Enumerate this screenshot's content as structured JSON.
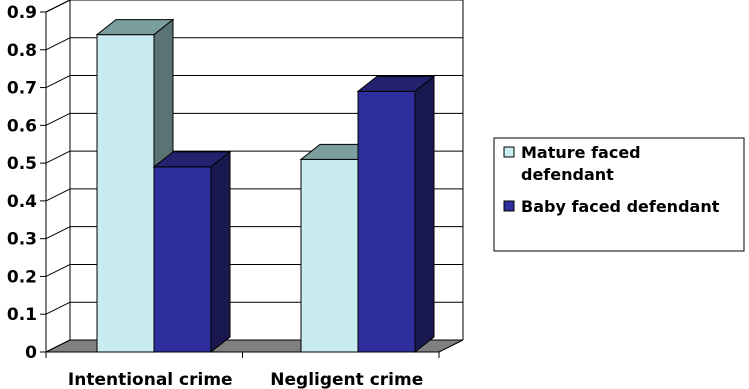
{
  "chart_data": {
    "type": "bar",
    "categories": [
      "Intentional crime",
      "Negligent crime"
    ],
    "series": [
      {
        "name": "Mature faced defendant",
        "values": [
          0.84,
          0.51
        ],
        "color": "#c8ecef"
      },
      {
        "name": "Baby faced defendant",
        "values": [
          0.49,
          0.69
        ],
        "color": "#2e2e9c"
      }
    ],
    "y_ticks": [
      "0",
      "0.1",
      "0.2",
      "0.3",
      "0.4",
      "0.5",
      "0.6",
      "0.7",
      "0.8",
      "0.9"
    ],
    "ylim": [
      0,
      0.9
    ],
    "grid": true,
    "style": "3d-clustered-bar",
    "legend": {
      "position": "right",
      "entries": [
        {
          "lines": [
            "Mature faced",
            "defendant"
          ]
        },
        {
          "lines": [
            "Baby faced defendant"
          ]
        }
      ]
    },
    "colors": {
      "wall_line": "#000000",
      "floor": "#808080",
      "mature_top": "#7a9e9e",
      "mature_side": "#5b7373",
      "baby_top": "#22226e",
      "baby_side": "#191950"
    }
  }
}
